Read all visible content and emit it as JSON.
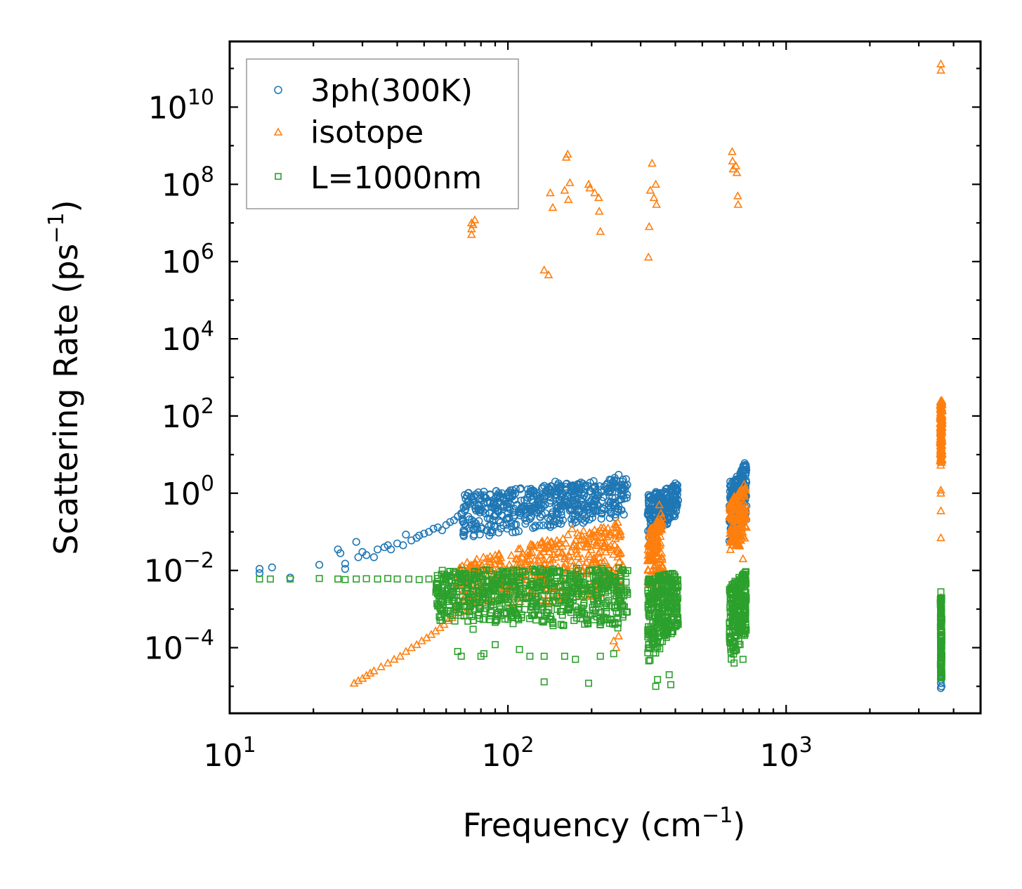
{
  "chart_data": {
    "type": "scatter",
    "title": "",
    "xlabel": "Frequency (cm",
    "xlabel_sup": "−1",
    "xlabel_end": ")",
    "ylabel": "Scattering Rate (ps",
    "ylabel_sup": "−1",
    "ylabel_end": ")",
    "xscale": "log",
    "yscale": "log",
    "xlim": [
      10,
      5000
    ],
    "ylim": [
      2e-06,
      500000000000.0
    ],
    "legend_position": "top-left",
    "x_ticks": [
      {
        "value": 10,
        "base": "10",
        "exp": "1"
      },
      {
        "value": 100,
        "base": "10",
        "exp": "2"
      },
      {
        "value": 1000,
        "base": "10",
        "exp": "3"
      }
    ],
    "y_ticks": [
      {
        "value": 0.0001,
        "base": "10",
        "exp": "−4"
      },
      {
        "value": 0.01,
        "base": "10",
        "exp": "−2"
      },
      {
        "value": 1,
        "base": "10",
        "exp": "0"
      },
      {
        "value": 100,
        "base": "10",
        "exp": "2"
      },
      {
        "value": 10000,
        "base": "10",
        "exp": "4"
      },
      {
        "value": 1000000,
        "base": "10",
        "exp": "6"
      },
      {
        "value": 100000000,
        "base": "10",
        "exp": "8"
      },
      {
        "value": 10000000000,
        "base": "10",
        "exp": "10"
      }
    ],
    "series": [
      {
        "name": "3ph(300K)",
        "color": "#1f77b4",
        "marker": "circle",
        "points": [
          [
            12.8,
            0.011
          ],
          [
            12.8,
            0.0085
          ],
          [
            14.2,
            0.012
          ],
          [
            16.5,
            0.0065
          ],
          [
            21,
            0.014
          ],
          [
            24.5,
            0.035
          ],
          [
            25,
            0.028
          ],
          [
            26,
            0.015
          ],
          [
            26,
            0.011
          ],
          [
            28.5,
            0.055
          ],
          [
            29,
            0.022
          ],
          [
            30,
            0.03
          ],
          [
            31,
            0.025
          ],
          [
            33,
            0.022
          ],
          [
            34,
            0.035
          ],
          [
            36,
            0.04
          ],
          [
            37,
            0.045
          ],
          [
            38,
            0.035
          ],
          [
            40,
            0.05
          ],
          [
            42,
            0.045
          ],
          [
            43,
            0.085
          ],
          [
            45,
            0.06
          ],
          [
            47,
            0.07
          ],
          [
            48,
            0.08
          ],
          [
            50,
            0.09
          ],
          [
            52,
            0.1
          ],
          [
            54,
            0.12
          ],
          [
            56,
            0.13
          ],
          [
            58,
            0.11
          ],
          [
            60,
            0.15
          ],
          [
            62,
            0.18
          ],
          [
            64,
            0.2
          ],
          [
            66,
            0.25
          ],
          [
            68,
            0.3
          ],
          [
            70,
            0.9
          ],
          [
            72,
            1.0
          ],
          [
            74,
            0.8
          ],
          [
            76,
            0.5
          ],
          [
            78,
            0.4
          ],
          [
            80,
            0.9
          ],
          [
            82,
            1.1
          ],
          [
            84,
            0.6
          ],
          [
            86,
            0.3
          ],
          [
            88,
            0.2
          ],
          [
            90,
            0.5
          ],
          [
            92,
            0.8
          ],
          [
            95,
            1.0
          ],
          [
            98,
            0.6
          ],
          [
            100,
            0.3
          ],
          [
            104,
            1.2
          ],
          [
            108,
            0.5
          ],
          [
            112,
            0.4
          ],
          [
            116,
            0.3
          ],
          [
            120,
            0.8
          ],
          [
            124,
            1.0
          ],
          [
            128,
            0.6
          ],
          [
            132,
            0.4
          ],
          [
            136,
            0.5
          ],
          [
            140,
            1.0
          ],
          [
            144,
            1.5
          ],
          [
            148,
            2.0
          ],
          [
            152,
            1.8
          ],
          [
            156,
            1.0
          ],
          [
            160,
            0.6
          ],
          [
            165,
            0.8
          ],
          [
            170,
            1.2
          ],
          [
            175,
            0.7
          ],
          [
            180,
            0.4
          ],
          [
            186,
            0.6
          ],
          [
            192,
            0.8
          ],
          [
            198,
            0.3
          ],
          [
            204,
            0.6
          ],
          [
            210,
            0.9
          ],
          [
            216,
            1.2
          ],
          [
            222,
            1.5
          ],
          [
            228,
            1.8
          ],
          [
            235,
            2.2
          ],
          [
            242,
            2.5
          ],
          [
            250,
            3.0
          ],
          [
            258,
            2.0
          ],
          [
            265,
            1.5
          ],
          [
            320,
            0.9
          ],
          [
            325,
            0.8
          ],
          [
            330,
            0.7
          ],
          [
            335,
            0.4
          ],
          [
            340,
            0.3
          ],
          [
            345,
            0.5
          ],
          [
            350,
            0.9
          ],
          [
            355,
            0.6
          ],
          [
            360,
            0.3
          ],
          [
            365,
            0.15
          ],
          [
            370,
            0.35
          ],
          [
            375,
            0.6
          ],
          [
            380,
            0.8
          ],
          [
            385,
            1.0
          ],
          [
            390,
            1.2
          ],
          [
            395,
            1.5
          ],
          [
            400,
            1.8
          ],
          [
            405,
            1.6
          ],
          [
            630,
            2.0
          ],
          [
            635,
            1.5
          ],
          [
            640,
            1.0
          ],
          [
            645,
            0.6
          ],
          [
            650,
            0.3
          ],
          [
            655,
            0.15
          ],
          [
            660,
            0.5
          ],
          [
            670,
            0.2
          ],
          [
            680,
            0.15
          ],
          [
            690,
            0.5
          ],
          [
            695,
            1.0
          ],
          [
            700,
            2.0
          ],
          [
            705,
            4.0
          ],
          [
            710,
            6.0
          ],
          [
            715,
            5.0
          ],
          [
            3600,
            1.2e-05
          ],
          [
            3600,
            9e-06
          ],
          [
            3600,
            1.5e-05
          ],
          [
            3620,
            1e-05
          ]
        ],
        "bands": [
          {
            "x": [
              68,
              270
            ],
            "y_low": [
              0.06,
              0.25
            ],
            "y_high": [
              1.0,
              2.5
            ],
            "n": 480
          },
          {
            "x": [
              318,
              410
            ],
            "y_low": [
              0.05,
              0.3
            ],
            "y_high": [
              0.9,
              1.8
            ],
            "n": 200
          },
          {
            "x": [
              625,
              720
            ],
            "y_low": [
              0.05,
              0.2
            ],
            "y_high": [
              1.5,
              7.0
            ],
            "n": 220
          }
        ]
      },
      {
        "name": "isotope",
        "color": "#ff7f0e",
        "marker": "triangle",
        "points": [
          [
            28,
            1.2e-05
          ],
          [
            29,
            1.4e-05
          ],
          [
            30,
            1.6e-05
          ],
          [
            31,
            1.9e-05
          ],
          [
            32,
            2.2e-05
          ],
          [
            33,
            2.5e-05
          ],
          [
            35,
            3.2e-05
          ],
          [
            37,
            4e-05
          ],
          [
            39,
            5e-05
          ],
          [
            41,
            6e-05
          ],
          [
            43,
            8e-05
          ],
          [
            45,
            0.0001
          ],
          [
            47,
            0.00012
          ],
          [
            49,
            0.00015
          ],
          [
            51,
            0.00018
          ],
          [
            53,
            0.00022
          ],
          [
            55,
            0.00027
          ],
          [
            57,
            0.00033
          ],
          [
            59,
            0.0004
          ],
          [
            61,
            0.0005
          ],
          [
            63,
            0.0006
          ],
          [
            65,
            0.0008
          ],
          [
            70,
            0.002
          ],
          [
            75,
            0.004
          ],
          [
            80,
            0.008
          ],
          [
            85,
            0.012
          ],
          [
            90,
            0.006
          ],
          [
            100,
            0.01
          ],
          [
            110,
            0.008
          ],
          [
            120,
            0.02
          ],
          [
            130,
            0.025
          ],
          [
            140,
            0.04
          ],
          [
            150,
            0.06
          ],
          [
            160,
            0.02
          ],
          [
            170,
            0.12
          ],
          [
            180,
            0.08
          ],
          [
            190,
            0.04
          ],
          [
            200,
            0.015
          ],
          [
            210,
            0.06
          ],
          [
            215,
            0.07
          ],
          [
            225,
            0.03
          ],
          [
            235,
            0.008
          ],
          [
            240,
            0.00015
          ],
          [
            245,
            0.0001
          ],
          [
            250,
            0.0002
          ],
          [
            74,
            7000000
          ],
          [
            74,
            10000000
          ],
          [
            74,
            5000000
          ],
          [
            75,
            9000000
          ],
          [
            76,
            12000000
          ],
          [
            135,
            600000
          ],
          [
            140,
            450000
          ],
          [
            142,
            60000000
          ],
          [
            145,
            25000000
          ],
          [
            160,
            70000000
          ],
          [
            162,
            500000000
          ],
          [
            164,
            600000000
          ],
          [
            165,
            40000000
          ],
          [
            167,
            110000000
          ],
          [
            195,
            100000000
          ],
          [
            197,
            80000000
          ],
          [
            205,
            60000000
          ],
          [
            212,
            45000000
          ],
          [
            213,
            20000000
          ],
          [
            215,
            6000000
          ],
          [
            320,
            1300000
          ],
          [
            322,
            8000000
          ],
          [
            325,
            70000000
          ],
          [
            330,
            350000000
          ],
          [
            335,
            45000000
          ],
          [
            340,
            100000000
          ],
          [
            342,
            30000000
          ],
          [
            640,
            700000000
          ],
          [
            642,
            400000000
          ],
          [
            645,
            250000000
          ],
          [
            660,
            300000000
          ],
          [
            665,
            200000000
          ],
          [
            670,
            50000000
          ],
          [
            672,
            30000000
          ],
          [
            3600,
            130000000000
          ],
          [
            3600,
            90000000000
          ],
          [
            3600,
            1.0
          ],
          [
            3600,
            1.2
          ],
          [
            3600,
            0.35
          ],
          [
            3600,
            0.07
          ],
          [
            3600,
            0.002
          ],
          [
            350,
            0.5
          ],
          [
            355,
            0.3
          ],
          [
            360,
            0.15
          ],
          [
            650,
            0.2
          ],
          [
            660,
            0.5
          ],
          [
            700,
            0.02
          ]
        ],
        "bands": [
          {
            "x": [
              65,
              260
            ],
            "y_low": [
              0.0008,
              0.002
            ],
            "y_high": [
              0.015,
              0.2
            ],
            "n": 420
          },
          {
            "x": [
              318,
              360
            ],
            "y_low": [
              0.003,
              0.005
            ],
            "y_high": [
              0.1,
              0.3
            ],
            "n": 140
          },
          {
            "x": [
              625,
              720
            ],
            "y_low": [
              0.03,
              0.05
            ],
            "y_high": [
              0.6,
              2.0
            ],
            "n": 180
          },
          {
            "x": [
              3580,
              3640
            ],
            "y_low": [
              5,
              5
            ],
            "y_high": [
              250,
              250
            ],
            "n": 150
          }
        ]
      },
      {
        "name": "L=1000nm",
        "color": "#2ca02c",
        "marker": "square",
        "points": [
          [
            12.8,
            0.006
          ],
          [
            14,
            0.006
          ],
          [
            16.5,
            0.006
          ],
          [
            21,
            0.0062
          ],
          [
            24.5,
            0.006
          ],
          [
            26,
            0.0058
          ],
          [
            28.5,
            0.006
          ],
          [
            31,
            0.0061
          ],
          [
            34,
            0.006
          ],
          [
            37,
            0.0062
          ],
          [
            40,
            0.006
          ],
          [
            44,
            0.006
          ],
          [
            48,
            0.0058
          ],
          [
            52,
            0.006
          ],
          [
            56,
            0.0062
          ],
          [
            60,
            0.005
          ],
          [
            66,
            8e-05
          ],
          [
            68,
            6e-05
          ],
          [
            75,
            0.0003
          ],
          [
            80,
            6e-05
          ],
          [
            82,
            7e-05
          ],
          [
            90,
            0.00012
          ],
          [
            110,
            9e-05
          ],
          [
            120,
            6e-05
          ],
          [
            135,
            1.3e-05
          ],
          [
            135,
            6e-05
          ],
          [
            160,
            6e-05
          ],
          [
            175,
            5e-05
          ],
          [
            195,
            1.2e-05
          ],
          [
            215,
            6e-05
          ],
          [
            240,
            7e-05
          ],
          [
            340,
            1e-05
          ],
          [
            345,
            1.5e-05
          ],
          [
            380,
            2e-05
          ],
          [
            385,
            1.1e-05
          ],
          [
            650,
            4e-05
          ],
          [
            700,
            5e-05
          ],
          [
            3600,
            0.0028
          ]
        ],
        "bands": [
          {
            "x": [
              55,
              270
            ],
            "y_low": [
              0.0005,
              0.0003
            ],
            "y_high": [
              0.01,
              0.012
            ],
            "n": 700
          },
          {
            "x": [
              318,
              410
            ],
            "y_low": [
              4e-05,
              0.0003
            ],
            "y_high": [
              0.006,
              0.01
            ],
            "n": 300
          },
          {
            "x": [
              625,
              720
            ],
            "y_low": [
              4e-05,
              0.0002
            ],
            "y_high": [
              0.004,
              0.01
            ],
            "n": 240
          },
          {
            "x": [
              3585,
              3630
            ],
            "y_low": [
              1.5e-05,
              1.5e-05
            ],
            "y_high": [
              0.002,
              0.002
            ],
            "n": 160
          }
        ]
      }
    ]
  }
}
